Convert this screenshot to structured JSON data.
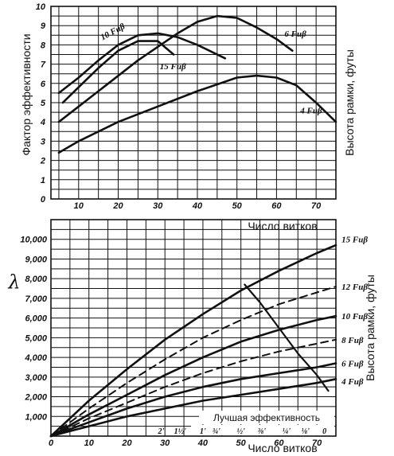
{
  "chart_data": [
    {
      "type": "line",
      "ylabel": "Фактор эффективности",
      "xlabel": "Число витков",
      "right_label": "Высота рамки, футы",
      "xlim": [
        3,
        75
      ],
      "ylim": [
        0,
        10
      ],
      "x_ticks": [
        10,
        20,
        30,
        40,
        50,
        60,
        70
      ],
      "y_ticks": [
        0,
        1,
        2,
        3,
        4,
        5,
        6,
        7,
        8,
        9,
        10
      ],
      "grid": true,
      "series": [
        {
          "name": "4 Fuβ",
          "dashed": false,
          "x": [
            5,
            10,
            20,
            30,
            40,
            50,
            55,
            60,
            65,
            70,
            75
          ],
          "y": [
            2.4,
            3.0,
            4.0,
            4.8,
            5.6,
            6.3,
            6.4,
            6.3,
            5.9,
            5.0,
            4.0
          ]
        },
        {
          "name": "6 Fuβ",
          "dashed": false,
          "x": [
            5,
            15,
            25,
            35,
            40,
            45,
            50,
            55,
            60,
            64
          ],
          "y": [
            4.0,
            5.6,
            7.2,
            8.6,
            9.2,
            9.5,
            9.4,
            8.9,
            8.3,
            7.7
          ]
        },
        {
          "name": "15 Fuβ",
          "dashed": false,
          "x": [
            6,
            10,
            15,
            20,
            25,
            30,
            34
          ],
          "y": [
            5.0,
            5.8,
            6.8,
            7.7,
            8.2,
            8.2,
            7.5
          ]
        },
        {
          "name": "10 Fuβ",
          "dashed": false,
          "x": [
            5,
            10,
            15,
            20,
            25,
            30,
            35,
            40,
            47
          ],
          "y": [
            5.5,
            6.3,
            7.2,
            8.0,
            8.5,
            8.6,
            8.4,
            8.0,
            7.3
          ]
        }
      ],
      "labels": [
        {
          "text": "10 Fuβ",
          "x": 16,
          "y": 8.4
        },
        {
          "text": "15 Fuβ",
          "x": 30.5,
          "y": 6.9
        },
        {
          "text": "6 Fuβ",
          "x": 62,
          "y": 8.6
        },
        {
          "text": "4 Fuβ",
          "x": 66,
          "y": 4.6
        }
      ]
    },
    {
      "type": "line",
      "ylabel": "λ",
      "xlabel": "Число витков",
      "right_label": "Высота рамки, футы",
      "annotation": "Лучшая эффективность",
      "xlim": [
        0,
        75
      ],
      "ylim": [
        0,
        11000
      ],
      "x_ticks": [
        0,
        10,
        20,
        30,
        40,
        50,
        60,
        70
      ],
      "y_ticks": [
        0,
        1000,
        2000,
        3000,
        4000,
        5000,
        6000,
        7000,
        8000,
        9000,
        10000
      ],
      "y_tick_labels": [
        "",
        "1,000",
        "2,000",
        "3,000",
        "4,000",
        "5,000",
        "6,000",
        "7,000",
        "8,000",
        "9,000",
        "10,000"
      ],
      "grid": true,
      "series": [
        {
          "name": "15 Fuβ",
          "dashed": false,
          "x": [
            0,
            5,
            10,
            20,
            30,
            40,
            50,
            60,
            70,
            75
          ],
          "y": [
            0,
            900,
            1800,
            3400,
            4900,
            6200,
            7400,
            8400,
            9300,
            9700
          ]
        },
        {
          "name": "12 Fuβ",
          "dashed": true,
          "x": [
            0,
            5,
            10,
            20,
            30,
            40,
            50,
            60,
            70,
            75
          ],
          "y": [
            0,
            700,
            1400,
            2700,
            3900,
            5000,
            5900,
            6700,
            7300,
            7600
          ]
        },
        {
          "name": "10 Fuβ",
          "dashed": false,
          "x": [
            0,
            5,
            10,
            20,
            30,
            40,
            50,
            60,
            70,
            75
          ],
          "y": [
            0,
            550,
            1100,
            2100,
            3100,
            4000,
            4800,
            5400,
            5900,
            6100
          ]
        },
        {
          "name": "8 Fuβ",
          "dashed": true,
          "x": [
            0,
            5,
            10,
            20,
            30,
            40,
            50,
            60,
            70,
            75
          ],
          "y": [
            0,
            450,
            900,
            1700,
            2500,
            3200,
            3800,
            4300,
            4700,
            4900
          ]
        },
        {
          "name": "6 Fuβ",
          "dashed": false,
          "x": [
            0,
            5,
            10,
            20,
            30,
            40,
            50,
            60,
            70,
            75
          ],
          "y": [
            0,
            350,
            700,
            1400,
            2000,
            2500,
            2900,
            3200,
            3500,
            3700
          ]
        },
        {
          "name": "4 Fuβ",
          "dashed": false,
          "x": [
            0,
            5,
            10,
            20,
            30,
            40,
            50,
            60,
            70,
            75
          ],
          "y": [
            0,
            250,
            500,
            1000,
            1400,
            1800,
            2100,
            2400,
            2700,
            2900
          ]
        },
        {
          "name": "Лучшая эффективность",
          "dashed": false,
          "best": true,
          "x": [
            51,
            55,
            60,
            65,
            70,
            73
          ],
          "y": [
            7700,
            6800,
            5500,
            4200,
            3100,
            2300
          ]
        }
      ],
      "labels": [
        {
          "text": "15 Fuβ",
          "x": 76.5,
          "y": 10000
        },
        {
          "text": "12 Fuβ",
          "x": 76.5,
          "y": 7600
        },
        {
          "text": "10 Fuβ",
          "x": 76.5,
          "y": 6100
        },
        {
          "text": "8 Fuβ",
          "x": 76.5,
          "y": 4900
        },
        {
          "text": "6 Fuβ",
          "x": 76.5,
          "y": 3700
        },
        {
          "text": "4 Fuβ",
          "x": 76.5,
          "y": 2800
        }
      ],
      "height_scale": [
        {
          "text": "2'",
          "x": 29
        },
        {
          "text": "1½'",
          "x": 34
        },
        {
          "text": "1'",
          "x": 40
        },
        {
          "text": "¾'",
          "x": 43.5
        },
        {
          "text": "½'",
          "x": 50
        },
        {
          "text": "⅜'",
          "x": 55.5
        },
        {
          "text": "¼'",
          "x": 62
        },
        {
          "text": "⅛'",
          "x": 67
        },
        {
          "text": "0",
          "x": 72
        }
      ]
    }
  ]
}
